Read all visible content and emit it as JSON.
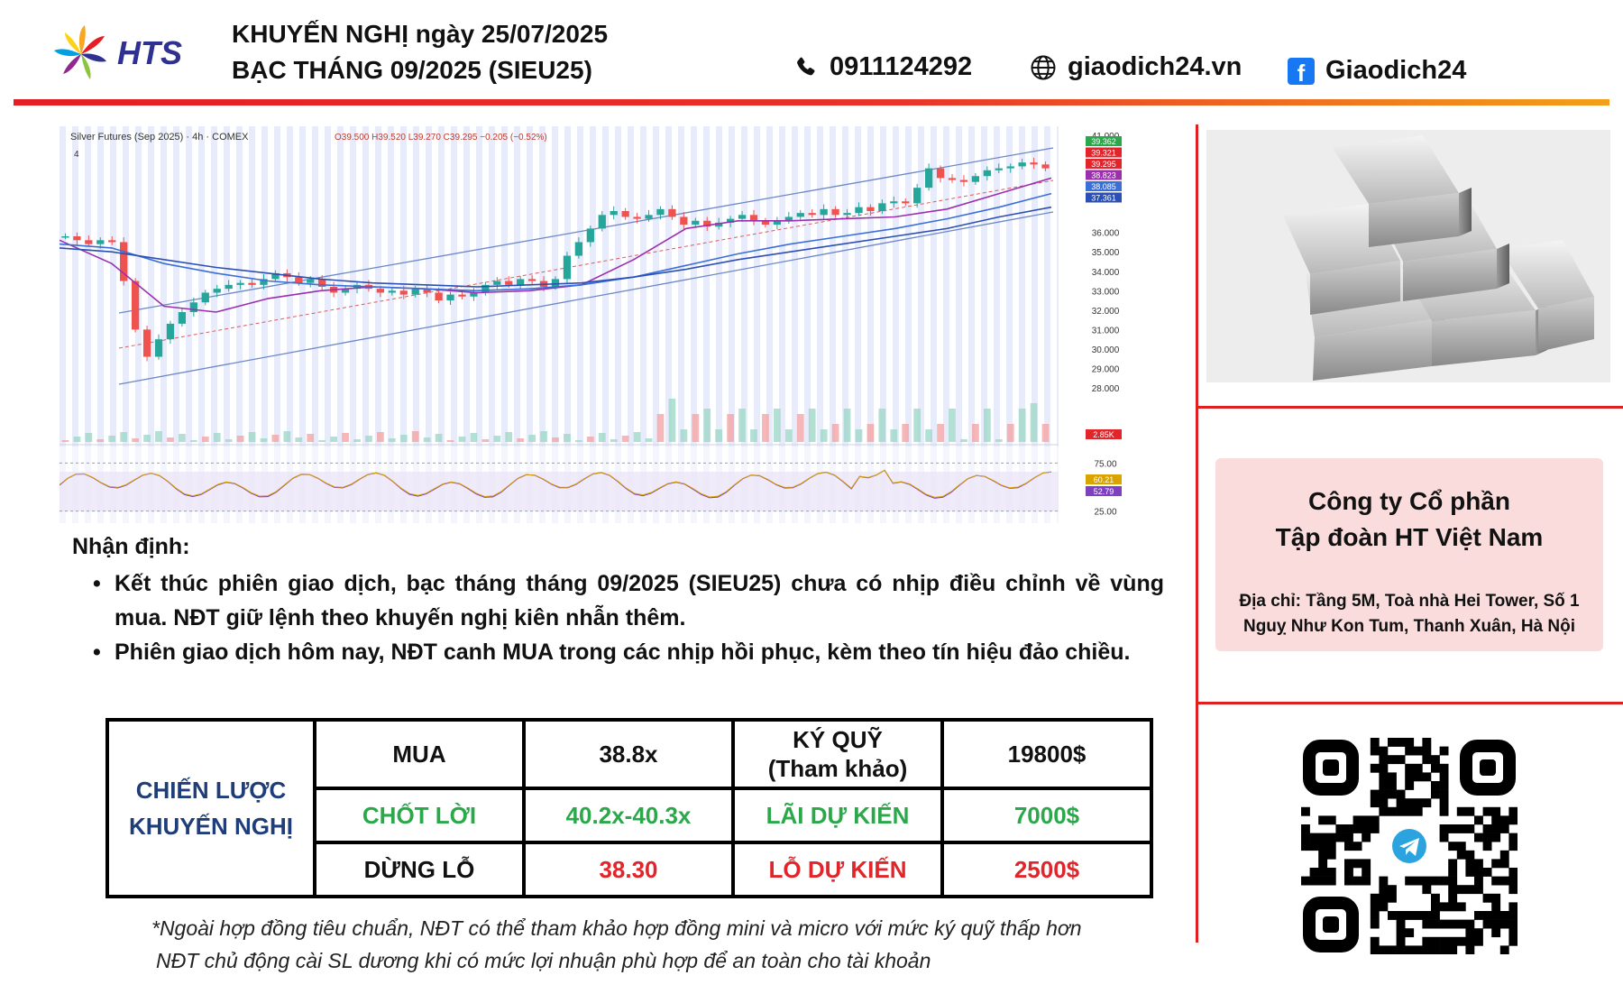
{
  "header": {
    "logo_text": "HTS",
    "title_line1": "KHUYẾN NGHỊ ngày 25/07/2025",
    "title_line2": "BẠC THÁNG 09/2025 (SIEU25)",
    "phone": "0911124292",
    "website": "giaodich24.vn",
    "facebook": "Giaodich24",
    "phone_icon": "phone-icon",
    "globe_icon": "globe-icon",
    "facebook_icon": "facebook-icon",
    "accent_color": "#e31e24"
  },
  "chart_data": {
    "type": "candlestick",
    "title": "Silver Futures (Sep 2025) · 4h · COMEX",
    "ohlc_label": "O39.500 H39.520 L39.270 C39.295 −0.205 (−0.52%)",
    "interval_badge": "4",
    "price_axis_ticks": [
      "41.000",
      "36.000",
      "35.000",
      "34.000",
      "33.000",
      "32.000",
      "31.000",
      "30.000",
      "29.000",
      "28.000"
    ],
    "price_labels": [
      {
        "value": "39.362",
        "color": "#2aa84a"
      },
      {
        "value": "39.321",
        "color": "#e0252b"
      },
      {
        "value": "39.295",
        "color": "#e0252b"
      },
      {
        "value": "38.823",
        "color": "#9b2fae"
      },
      {
        "value": "38.085",
        "color": "#3a6fd8"
      },
      {
        "value": "37.361",
        "color": "#2b4fb5"
      }
    ],
    "volume_label": {
      "value": "2.85K",
      "color": "#e0252b"
    },
    "rsi_ticks": [
      "75.00",
      "25.00"
    ],
    "rsi_labels": [
      {
        "value": "60.21",
        "color": "#d9a400"
      },
      {
        "value": "52.79",
        "color": "#7e3fc0"
      }
    ],
    "ylim": [
      28,
      41
    ],
    "close_series": [
      35.8,
      35.6,
      35.4,
      35.6,
      35.5,
      33.5,
      31.0,
      29.6,
      30.5,
      31.3,
      31.9,
      32.4,
      32.9,
      33.1,
      33.3,
      33.4,
      33.3,
      33.6,
      33.9,
      33.7,
      33.4,
      33.6,
      33.2,
      32.9,
      33.1,
      33.3,
      33.1,
      32.9,
      33.0,
      32.8,
      33.1,
      32.9,
      32.5,
      32.8,
      32.7,
      32.9,
      33.3,
      33.5,
      33.3,
      33.6,
      33.5,
      33.2,
      33.6,
      34.8,
      35.5,
      36.2,
      36.9,
      37.1,
      36.8,
      36.7,
      36.9,
      37.2,
      36.8,
      36.4,
      36.6,
      36.3,
      36.5,
      36.7,
      36.9,
      36.6,
      36.4,
      36.6,
      36.8,
      37.0,
      36.9,
      37.2,
      36.9,
      37.0,
      37.3,
      37.1,
      37.5,
      37.6,
      37.5,
      38.3,
      39.3,
      38.8,
      38.7,
      38.6,
      38.9,
      39.2,
      39.3,
      39.4,
      39.6,
      39.5,
      39.3
    ],
    "ma_series": [
      {
        "name": "",
        "color": "#9b2fae",
        "values": [
          35.6,
          34.4,
          32.2,
          31.9,
          32.6,
          33.0,
          33.2,
          33.1,
          32.9,
          33.0,
          33.3,
          34.6,
          36.2,
          36.6,
          36.6,
          36.7,
          36.8,
          37.2,
          38.0,
          38.8
        ]
      },
      {
        "name": "",
        "color": "#3a6fd8",
        "values": [
          35.4,
          35.2,
          34.4,
          33.9,
          33.5,
          33.3,
          33.2,
          33.1,
          33.0,
          33.1,
          33.3,
          33.7,
          34.3,
          34.9,
          35.4,
          35.8,
          36.2,
          36.7,
          37.3,
          38.0
        ]
      },
      {
        "name": "",
        "color": "#2b4fb5",
        "values": [
          35.2,
          35.0,
          34.6,
          34.2,
          33.9,
          33.6,
          33.4,
          33.3,
          33.2,
          33.3,
          33.4,
          33.7,
          34.1,
          34.6,
          35.0,
          35.4,
          35.8,
          36.2,
          36.8,
          37.3
        ]
      }
    ]
  },
  "analysis": {
    "heading": "Nhận định:",
    "bullet1": "Kết thúc phiên giao dịch, bạc tháng tháng 09/2025 (SIEU25) chưa có nhịp điều chỉnh về vùng mua. NĐT giữ lệnh theo khuyến nghị kiên nhẫn thêm.",
    "bullet2": "Phiên giao dịch hôm nay, NĐT canh MUA trong các nhịp hồi phục, kèm theo tín hiệu đảo chiều."
  },
  "strategy": {
    "label_line1": "CHIẾN LƯỢC",
    "label_line2": "KHUYẾN NGHỊ",
    "buy_label": "MUA",
    "buy_value": "38.8x",
    "margin_label_line1": "KÝ QUỸ",
    "margin_label_line2": "(Tham khảo)",
    "margin_value": "19800$",
    "tp_label": "CHỐT LỜI",
    "tp_value": "40.2x-40.3x",
    "expected_profit_label": "LÃI DỰ KIẾN",
    "expected_profit_value": "7000$",
    "sl_label": "DỪNG LỖ",
    "sl_value": "38.30",
    "expected_loss_label": "LỖ DỰ KIẾN",
    "expected_loss_value": "2500$"
  },
  "footnote": {
    "line1": "*Ngoài hợp đồng tiêu chuẩn, NĐT có thể tham khảo hợp đồng mini và micro với mức ký quỹ thấp hơn",
    "line2": "NĐT chủ động cài SL dương khi có mức lợi nhuận phù hợp để an toàn cho tài khoản"
  },
  "company": {
    "name_line1": "Công ty Cổ phần",
    "name_line2": "Tập đoàn HT Việt Nam",
    "address_line1": "Địa chỉ: Tầng 5M, Toà nhà Hei Tower, Số 1",
    "address_line2": "Nguỵ Như Kon Tum, Thanh Xuân, Hà Nội"
  },
  "qr": {
    "center_icon": "telegram-icon"
  },
  "image": {
    "subject": "silver-bars-image"
  }
}
